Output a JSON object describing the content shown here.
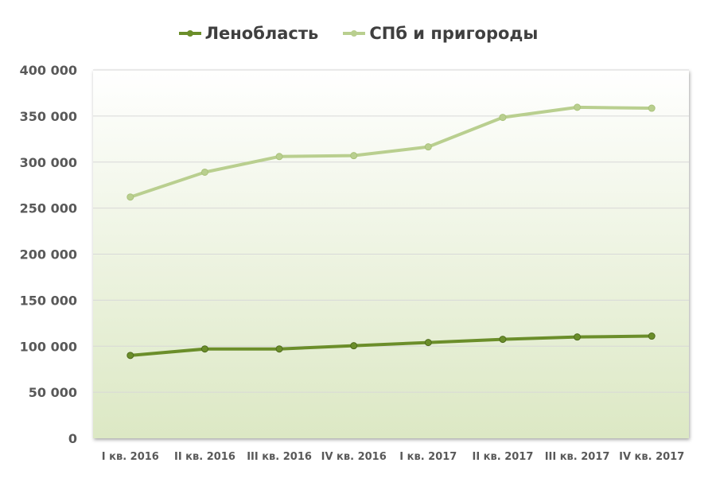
{
  "chart_data": {
    "type": "line",
    "title": "",
    "xlabel": "",
    "ylabel": "",
    "categories": [
      "I кв. 2016",
      "II кв. 2016",
      "III кв. 2016",
      "IV кв. 2016",
      "I кв. 2017",
      "II кв. 2017",
      "III кв. 2017",
      "IV кв. 2017"
    ],
    "y_ticks": [
      "0",
      "50 000",
      "100 000",
      "150 000",
      "200 000",
      "250 000",
      "300 000",
      "350 000",
      "400 000"
    ],
    "ylim": [
      0,
      400000
    ],
    "grid": true,
    "legend_position": "top-center",
    "series": [
      {
        "name": "Ленобласть",
        "color": "#6b8e2a",
        "values": [
          90000,
          97000,
          97000,
          100500,
          104000,
          107500,
          110000,
          111000
        ]
      },
      {
        "name": "СПб и пригороды",
        "color": "#b9cf8f",
        "values": [
          262000,
          289000,
          306000,
          307000,
          316500,
          348500,
          359500,
          358500
        ]
      }
    ]
  }
}
